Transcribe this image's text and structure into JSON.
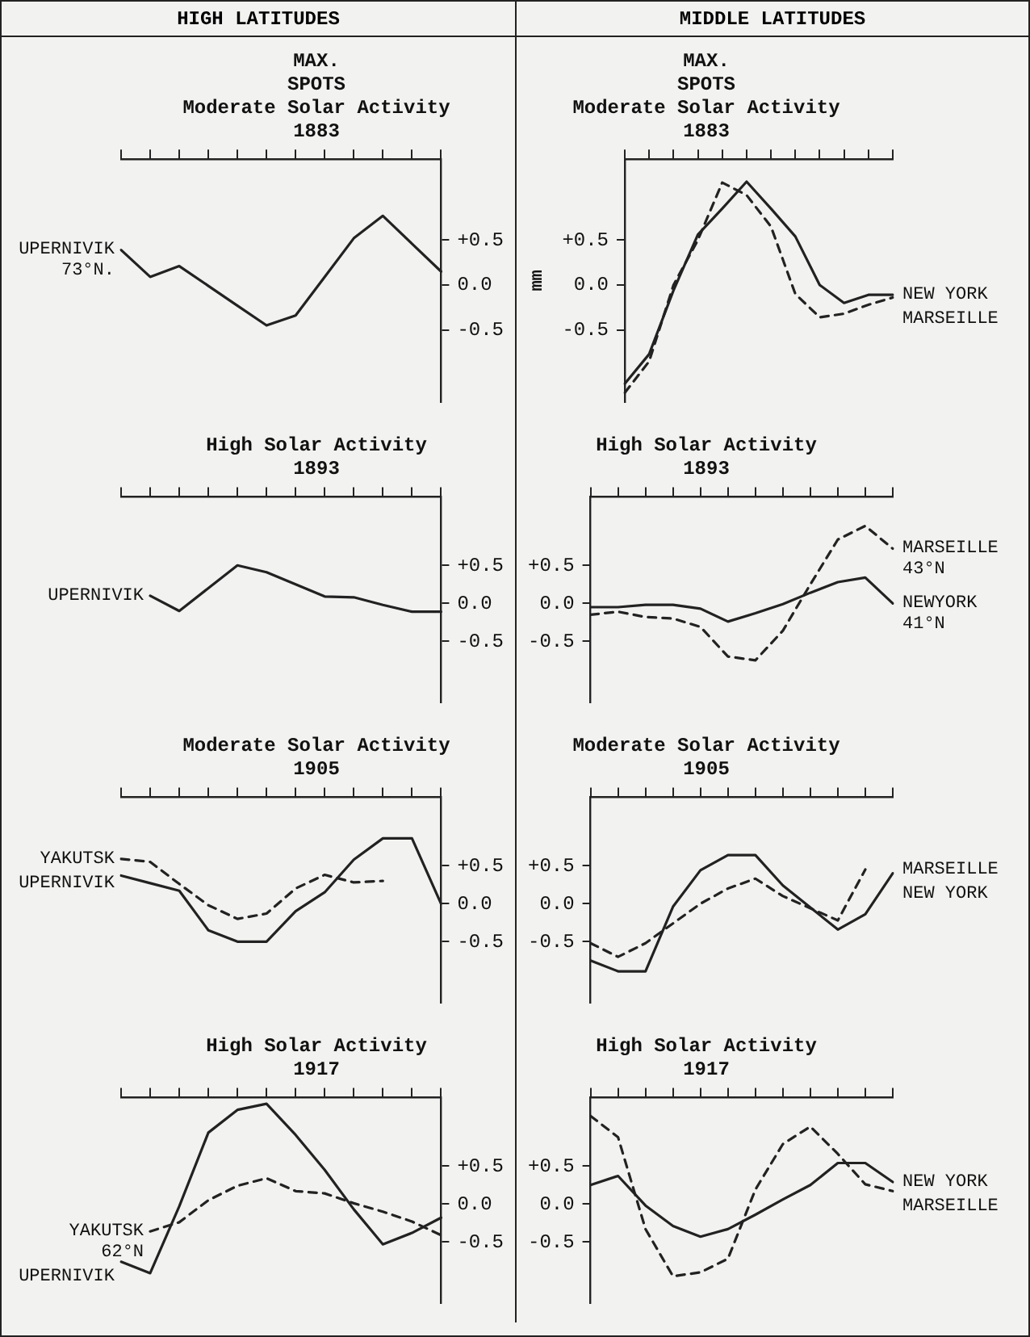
{
  "chart_data": [
    {
      "type": "line",
      "title": "MAX.\nSPOTS\nModerate Solar Activity\n1883",
      "annotations": [
        "HIGH LATITUDES"
      ],
      "categories": [
        null,
        null,
        null,
        null,
        null,
        null,
        null,
        null,
        null,
        null,
        null,
        null
      ],
      "ylim": [
        -1.3,
        1.4
      ],
      "yticks": [
        {
          "value": 0.5,
          "label": "+0.5"
        },
        {
          "value": 0,
          "label": "0.0"
        },
        {
          "value": -0.5,
          "label": "-0.5"
        }
      ],
      "tick_labels": "y",
      "grid": false,
      "legend": false,
      "series": [
        {
          "name": "UPERNIVIK\n73°N.",
          "color": "#222222",
          "line_style": "solid",
          "values": [
            0.39,
            0.09,
            0.21,
            -0.01,
            -0.23,
            -0.45,
            -0.34,
            0.09,
            0.52,
            0.77,
            0.46,
            0.15
          ]
        }
      ]
    },
    {
      "type": "line",
      "title": "MAX.\nSPOTS\nModerate Solar Activity\n1883",
      "annotations": [
        "MIDDLE LATITUDES"
      ],
      "ylabel": "mm",
      "categories": [
        null,
        null,
        null,
        null,
        null,
        null,
        null,
        null,
        null,
        null,
        null,
        null
      ],
      "ylim": [
        -1.3,
        1.4
      ],
      "yticks": [
        {
          "value": 0.5,
          "label": "+0.5"
        },
        {
          "value": 0,
          "label": "0.0"
        },
        {
          "value": -0.5,
          "label": "-0.5"
        }
      ],
      "tick_labels": "y",
      "grid": false,
      "legend": false,
      "series": [
        {
          "name": "NEW YORK",
          "color": "#222222",
          "line_style": "solid",
          "values": [
            -1.1,
            -0.77,
            -0.06,
            0.56,
            0.85,
            1.15,
            0.85,
            0.54,
            0,
            -0.2,
            -0.11,
            -0.11
          ]
        },
        {
          "name": "MARSEILLE",
          "color": "#222222",
          "line_style": "dashed",
          "values": [
            -1.2,
            -0.85,
            0,
            0.5,
            1.14,
            1.0,
            0.65,
            -0.1,
            -0.36,
            -0.32,
            -0.22,
            -0.14
          ]
        }
      ]
    },
    {
      "type": "line",
      "title": "High Solar Activity\n1893",
      "categories": [
        null,
        null,
        null,
        null,
        null,
        null,
        null,
        null,
        null,
        null,
        null,
        null
      ],
      "ylim": [
        -1.3,
        1.4
      ],
      "yticks": [
        {
          "value": 0.5,
          "label": "+0.5"
        },
        {
          "value": 0,
          "label": "0.0"
        },
        {
          "value": -0.5,
          "label": "-0.5"
        }
      ],
      "tick_labels": "y",
      "grid": false,
      "legend": false,
      "series": [
        {
          "name": "UPERNIVIK",
          "color": "#222222",
          "line_style": "solid",
          "values": [
            null,
            0.1,
            -0.1,
            0.2,
            0.5,
            0.41,
            0.25,
            0.09,
            0.08,
            -0.02,
            -0.11,
            -0.11
          ]
        }
      ]
    },
    {
      "type": "line",
      "title": "High Solar Activity\n1893",
      "categories": [
        null,
        null,
        null,
        null,
        null,
        null,
        null,
        null,
        null,
        null,
        null,
        null
      ],
      "ylim": [
        -1.3,
        1.4
      ],
      "yticks": [
        {
          "value": 0.5,
          "label": "+0.5"
        },
        {
          "value": 0,
          "label": "0.0"
        },
        {
          "value": -0.5,
          "label": "-0.5"
        }
      ],
      "tick_labels": "y",
      "grid": false,
      "legend": false,
      "series": [
        {
          "name": "MARSEILLE\n43°N",
          "color": "#222222",
          "line_style": "dashed",
          "values": [
            -0.15,
            -0.11,
            -0.18,
            -0.2,
            -0.31,
            -0.7,
            -0.75,
            -0.36,
            0.25,
            0.84,
            1.02,
            0.72
          ]
        },
        {
          "name": "NEWYORK\n41°N",
          "color": "#222222",
          "line_style": "solid",
          "values": [
            -0.05,
            -0.05,
            -0.02,
            -0.02,
            -0.07,
            -0.24,
            -0.13,
            -0.01,
            0.14,
            0.28,
            0.34,
            0
          ]
        }
      ]
    },
    {
      "type": "line",
      "title": "Moderate Solar Activity\n1905",
      "categories": [
        null,
        null,
        null,
        null,
        null,
        null,
        null,
        null,
        null,
        null,
        null,
        null
      ],
      "ylim": [
        -1.3,
        1.4
      ],
      "yticks": [
        {
          "value": 0.5,
          "label": "+0.5"
        },
        {
          "value": 0,
          "label": "0.0"
        },
        {
          "value": -0.5,
          "label": "-0.5"
        }
      ],
      "tick_labels": "y",
      "grid": false,
      "legend": false,
      "series": [
        {
          "name": "YAKUTSK",
          "color": "#222222",
          "line_style": "dashed",
          "values": [
            0.59,
            0.55,
            0.26,
            -0.02,
            -0.2,
            -0.13,
            0.2,
            0.38,
            0.28,
            0.3,
            null,
            null
          ]
        },
        {
          "name": "UPERNIVIK",
          "color": "#222222",
          "line_style": "solid",
          "values": [
            0.37,
            0.27,
            0.17,
            -0.35,
            -0.5,
            -0.5,
            -0.1,
            0.15,
            0.58,
            0.86,
            0.86,
            0
          ]
        }
      ]
    },
    {
      "type": "line",
      "title": "Moderate Solar Activity\n1905",
      "categories": [
        null,
        null,
        null,
        null,
        null,
        null,
        null,
        null,
        null,
        null,
        null,
        null
      ],
      "ylim": [
        -1.3,
        1.4
      ],
      "yticks": [
        {
          "value": 0.5,
          "label": "+0.5"
        },
        {
          "value": 0,
          "label": "0.0"
        },
        {
          "value": -0.5,
          "label": "-0.5"
        }
      ],
      "tick_labels": "y",
      "grid": false,
      "legend": false,
      "series": [
        {
          "name": "MARSEILLE",
          "color": "#222222",
          "line_style": "dashed",
          "values": [
            -0.52,
            -0.7,
            -0.52,
            -0.26,
            0,
            0.2,
            0.33,
            0.1,
            -0.06,
            -0.22,
            0.45,
            null
          ]
        },
        {
          "name": "NEW YORK",
          "color": "#222222",
          "line_style": "solid",
          "values": [
            -0.75,
            -0.89,
            -0.89,
            -0.04,
            0.44,
            0.64,
            0.64,
            0.24,
            -0.05,
            -0.34,
            -0.14,
            0.4
          ]
        }
      ]
    },
    {
      "type": "line",
      "title": "High Solar Activity\n1917",
      "categories": [
        null,
        null,
        null,
        null,
        null,
        null,
        null,
        null,
        null,
        null,
        null,
        null
      ],
      "ylim": [
        -1.3,
        1.4
      ],
      "yticks": [
        {
          "value": 0.5,
          "label": "+0.5"
        },
        {
          "value": 0,
          "label": "0.0"
        },
        {
          "value": -0.5,
          "label": "-0.5"
        }
      ],
      "tick_labels": "y",
      "grid": false,
      "legend": false,
      "series": [
        {
          "name": "YAKUTSK\n62°N",
          "color": "#222222",
          "line_style": "dashed",
          "values": [
            null,
            -0.36,
            -0.24,
            0.05,
            0.24,
            0.34,
            0.17,
            0.14,
            0.01,
            -0.1,
            -0.23,
            -0.41
          ]
        },
        {
          "name": "UPERNIVIK",
          "color": "#222222",
          "line_style": "solid",
          "values": [
            -0.76,
            -0.91,
            -0.03,
            0.94,
            1.24,
            1.32,
            0.91,
            0.45,
            -0.07,
            -0.53,
            -0.38,
            -0.18
          ]
        }
      ]
    },
    {
      "type": "line",
      "title": "High Solar Activity\n1917",
      "categories": [
        null,
        null,
        null,
        null,
        null,
        null,
        null,
        null,
        null,
        null,
        null,
        null
      ],
      "ylim": [
        -1.3,
        1.4
      ],
      "yticks": [
        {
          "value": 0.5,
          "label": "+0.5"
        },
        {
          "value": 0,
          "label": "0.0"
        },
        {
          "value": -0.5,
          "label": "-0.5"
        }
      ],
      "tick_labels": "y",
      "grid": false,
      "legend": false,
      "series": [
        {
          "name": "NEW YORK",
          "color": "#222222",
          "line_style": "solid",
          "values": [
            0.25,
            0.37,
            -0.02,
            -0.29,
            -0.43,
            -0.33,
            -0.14,
            0.06,
            0.25,
            0.54,
            0.54,
            0.29
          ]
        },
        {
          "name": "MARSEILLE",
          "color": "#222222",
          "line_style": "dashed",
          "values": [
            1.16,
            0.88,
            -0.33,
            -0.95,
            -0.9,
            -0.72,
            0.19,
            0.79,
            1.02,
            0.66,
            0.26,
            0.17
          ]
        }
      ]
    }
  ]
}
